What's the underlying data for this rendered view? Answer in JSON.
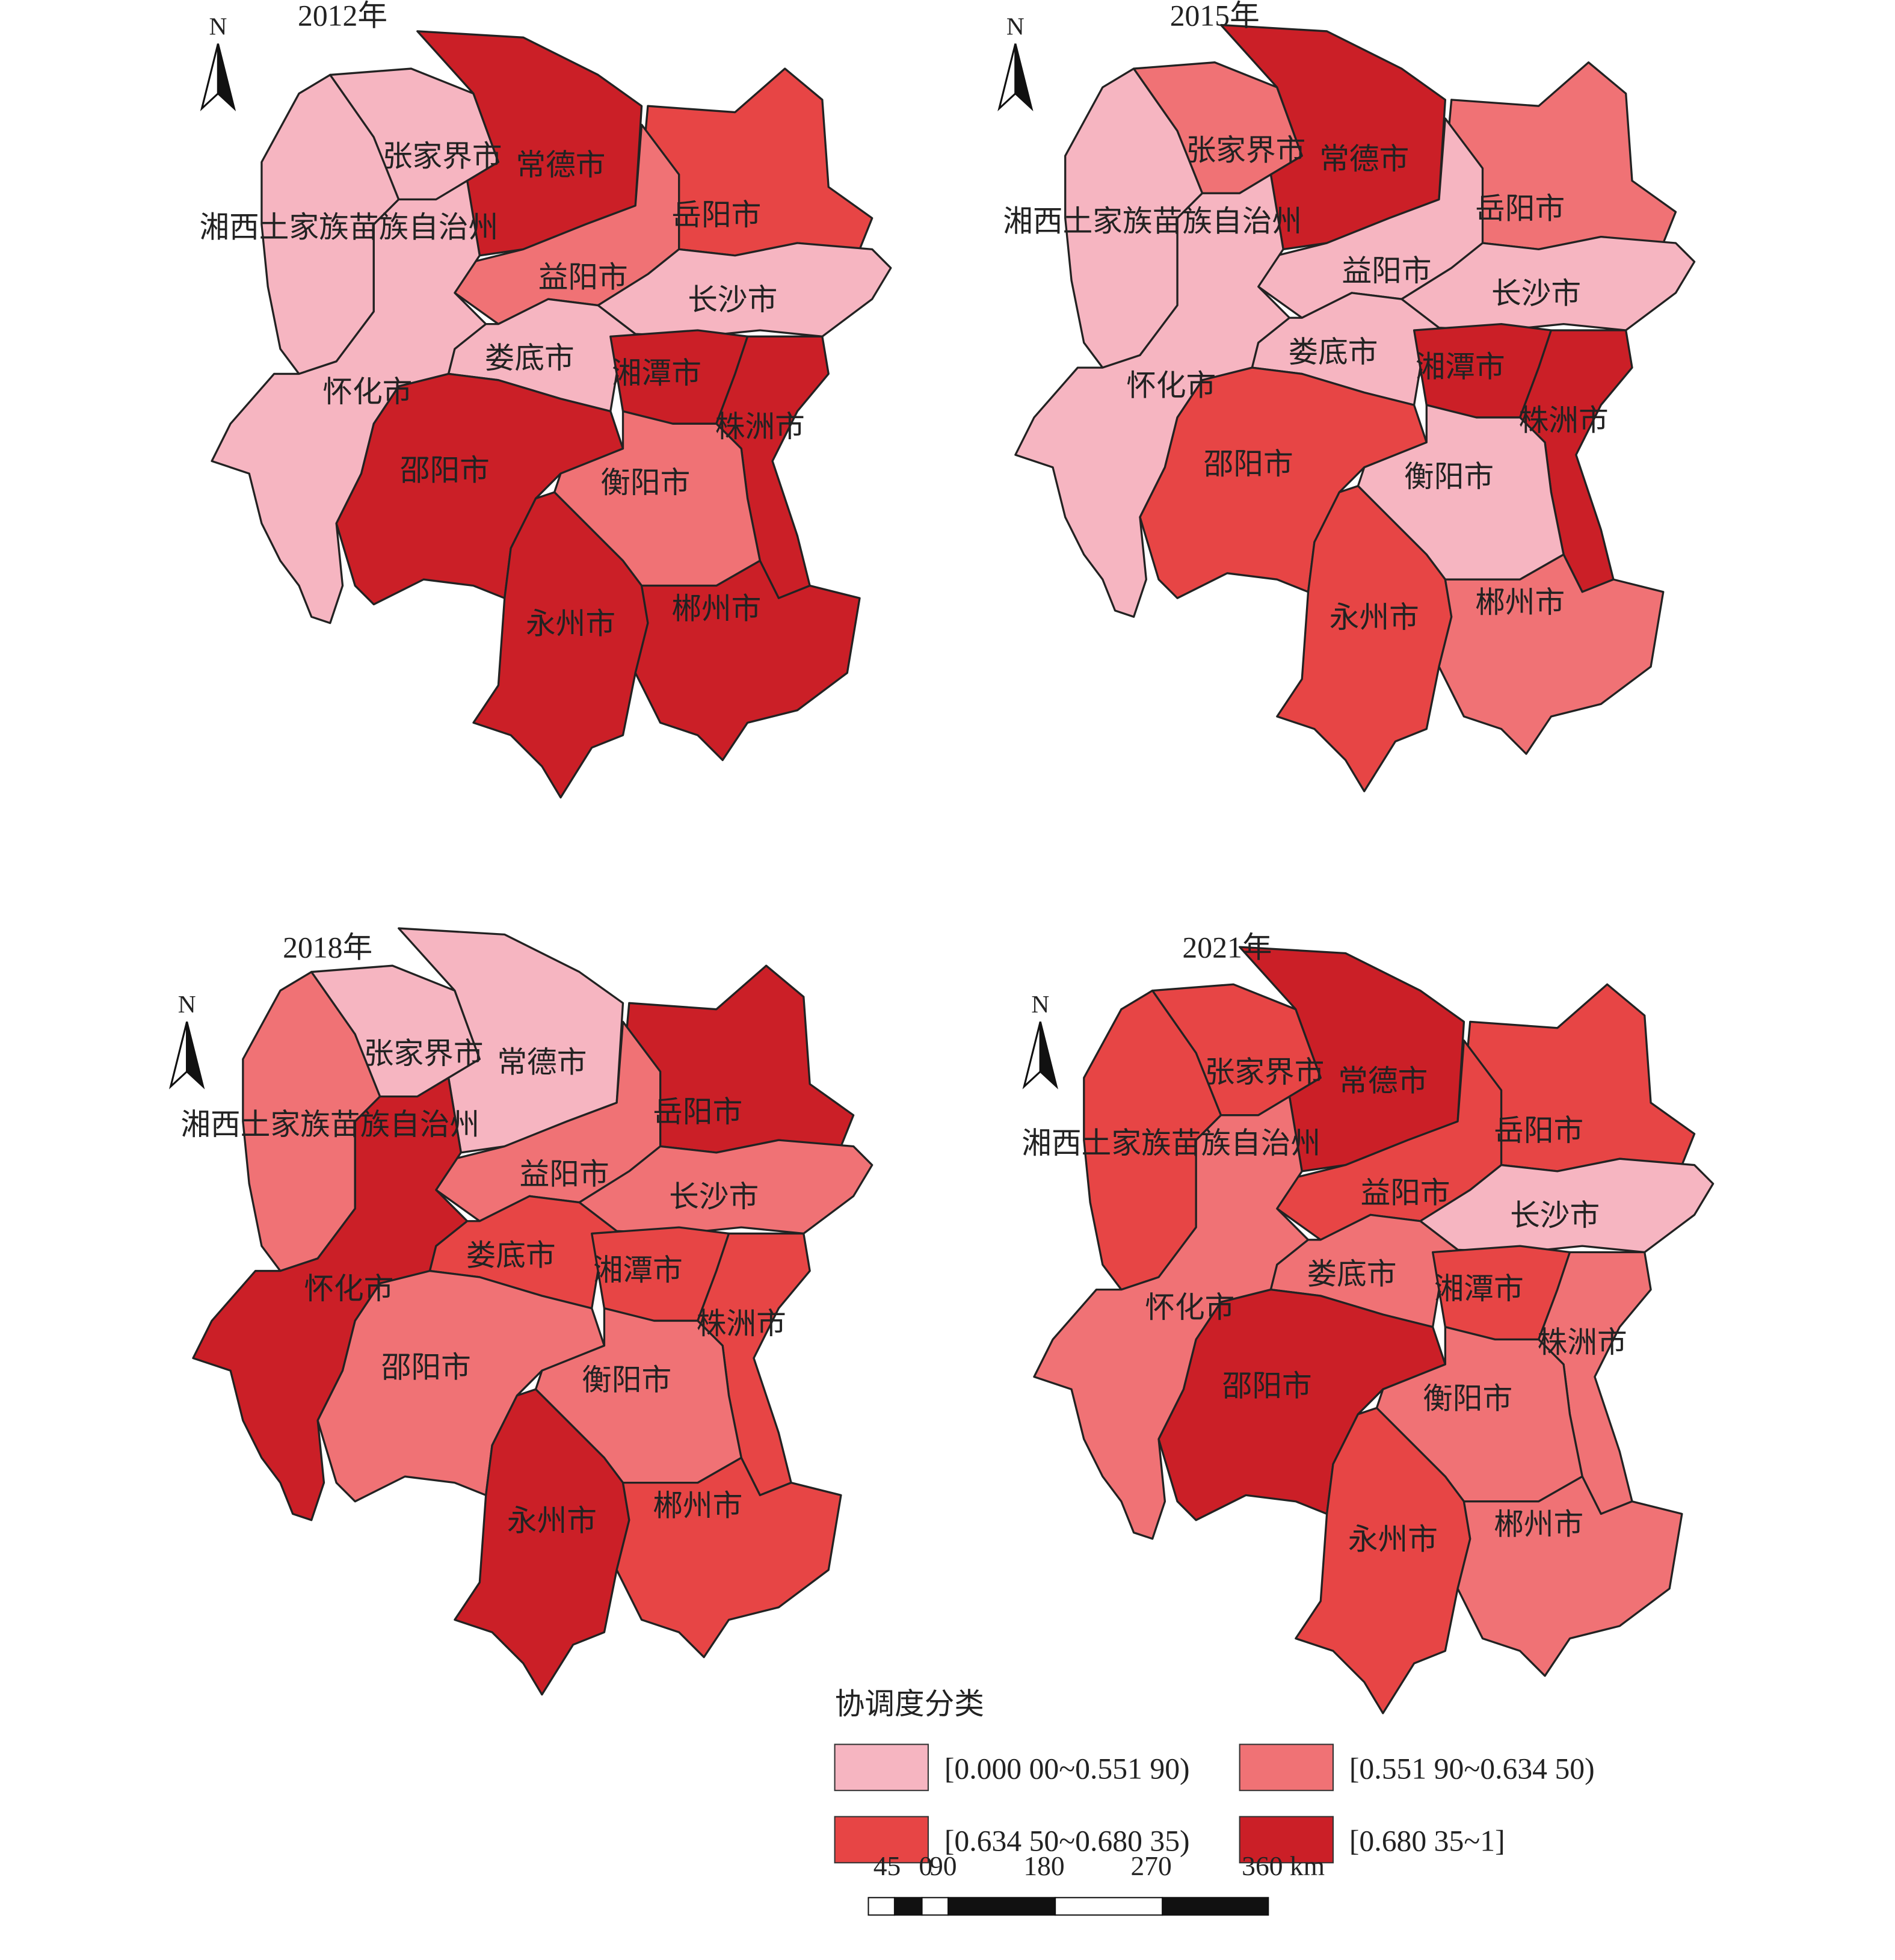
{
  "maps": [
    {
      "title": "2012年",
      "north": "N",
      "regions": [
        {
          "name": "湘西土家族苗族自治州",
          "class": 0
        },
        {
          "name": "张家界市",
          "class": 0
        },
        {
          "name": "常德市",
          "class": 3
        },
        {
          "name": "岳阳市",
          "class": 2
        },
        {
          "name": "益阳市",
          "class": 1
        },
        {
          "name": "长沙市",
          "class": 0
        },
        {
          "name": "怀化市",
          "class": 0
        },
        {
          "name": "娄底市",
          "class": 0
        },
        {
          "name": "湘潭市",
          "class": 3
        },
        {
          "name": "株洲市",
          "class": 3
        },
        {
          "name": "邵阳市",
          "class": 3
        },
        {
          "name": "衡阳市",
          "class": 1
        },
        {
          "name": "永州市",
          "class": 3
        },
        {
          "name": "郴州市",
          "class": 3
        }
      ]
    },
    {
      "title": "2015年",
      "north": "N",
      "regions": [
        {
          "name": "湘西土家族苗族自治州",
          "class": 0
        },
        {
          "name": "张家界市",
          "class": 1
        },
        {
          "name": "常德市",
          "class": 3
        },
        {
          "name": "岳阳市",
          "class": 1
        },
        {
          "name": "益阳市",
          "class": 0
        },
        {
          "name": "长沙市",
          "class": 0
        },
        {
          "name": "怀化市",
          "class": 0
        },
        {
          "name": "娄底市",
          "class": 0
        },
        {
          "name": "湘潭市",
          "class": 3
        },
        {
          "name": "株洲市",
          "class": 3
        },
        {
          "name": "邵阳市",
          "class": 2
        },
        {
          "name": "衡阳市",
          "class": 0
        },
        {
          "name": "永州市",
          "class": 2
        },
        {
          "name": "郴州市",
          "class": 1
        }
      ]
    },
    {
      "title": "2018年",
      "north": "N",
      "regions": [
        {
          "name": "湘西土家族苗族自治州",
          "class": 1
        },
        {
          "name": "张家界市",
          "class": 0
        },
        {
          "name": "常德市",
          "class": 0
        },
        {
          "name": "岳阳市",
          "class": 3
        },
        {
          "name": "益阳市",
          "class": 1
        },
        {
          "name": "长沙市",
          "class": 1
        },
        {
          "name": "怀化市",
          "class": 3
        },
        {
          "name": "娄底市",
          "class": 2
        },
        {
          "name": "湘潭市",
          "class": 2
        },
        {
          "name": "株洲市",
          "class": 2
        },
        {
          "name": "邵阳市",
          "class": 1
        },
        {
          "name": "衡阳市",
          "class": 1
        },
        {
          "name": "永州市",
          "class": 3
        },
        {
          "name": "郴州市",
          "class": 2
        }
      ]
    },
    {
      "title": "2021年",
      "north": "N",
      "regions": [
        {
          "name": "湘西土家族苗族自治州",
          "class": 2
        },
        {
          "name": "张家界市",
          "class": 2
        },
        {
          "name": "常德市",
          "class": 3
        },
        {
          "name": "岳阳市",
          "class": 2
        },
        {
          "name": "益阳市",
          "class": 2
        },
        {
          "name": "长沙市",
          "class": 0
        },
        {
          "name": "怀化市",
          "class": 1
        },
        {
          "name": "娄底市",
          "class": 1
        },
        {
          "name": "湘潭市",
          "class": 2
        },
        {
          "name": "株洲市",
          "class": 1
        },
        {
          "name": "邵阳市",
          "class": 3
        },
        {
          "name": "衡阳市",
          "class": 1
        },
        {
          "name": "永州市",
          "class": 2
        },
        {
          "name": "郴州市",
          "class": 1
        }
      ]
    }
  ],
  "legend": {
    "title": "协调度分类",
    "items": [
      {
        "label": "[0.000 00~0.551 90)",
        "color": "#f6b5c1"
      },
      {
        "label": "[0.551 90~0.634 50)",
        "color": "#f07275"
      },
      {
        "label": "[0.634 50~0.680 35)",
        "color": "#e74545"
      },
      {
        "label": "[0.680 35~1]",
        "color": "#cb1f27"
      }
    ]
  },
  "scale_bar": {
    "labels": [
      "45",
      "0",
      "90",
      "180",
      "270",
      "360 km"
    ]
  }
}
